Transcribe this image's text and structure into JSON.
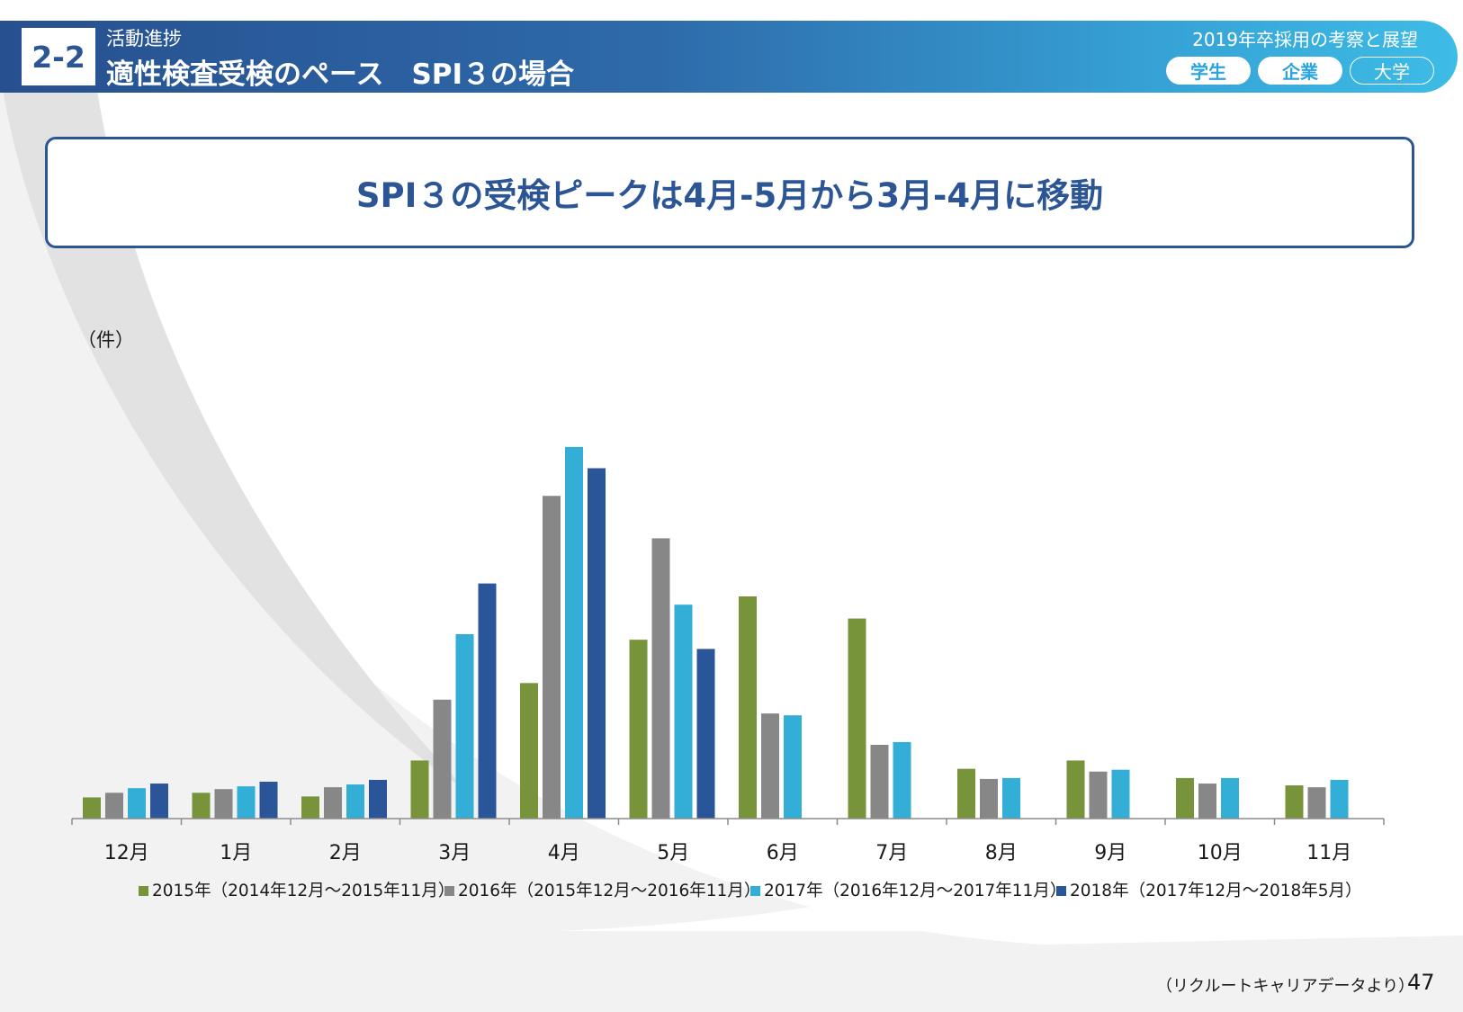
{
  "header": {
    "section_number": "2-2",
    "section_sub": "活動進捗",
    "section_title": "適性検査受検のペース　SPI３の場合",
    "report_title": "2019年卒採用の考察と展望",
    "tags": [
      "学生",
      "企業",
      "大学"
    ]
  },
  "headline": "SPI３の受検ピークは4月-5月から3月-4月に移動",
  "chart_data": {
    "type": "bar",
    "unit_label": "（件）",
    "categories": [
      "12月",
      "1月",
      "2月",
      "3月",
      "4月",
      "5月",
      "6月",
      "7月",
      "8月",
      "9月",
      "10月",
      "11月"
    ],
    "ylim": [
      0,
      400
    ],
    "series": [
      {
        "name": "2015年（2014年12月～2015年11月）",
        "color": "#77943b",
        "values": [
          23,
          28,
          24,
          63,
          147,
          194,
          241,
          217,
          54,
          63,
          44,
          36
        ]
      },
      {
        "name": "2016年（2015年12月～2016年11月）",
        "color": "#878787",
        "values": [
          28,
          32,
          34,
          129,
          350,
          304,
          114,
          80,
          43,
          51,
          38,
          34
        ]
      },
      {
        "name": "2017年（2016年12月～2017年11月）",
        "color": "#33aed6",
        "values": [
          33,
          35,
          37,
          200,
          403,
          232,
          112,
          83,
          44,
          53,
          44,
          42
        ]
      },
      {
        "name": "2018年（2017年12月～2018年5月）",
        "color": "#2b5599",
        "values": [
          38,
          40,
          42,
          255,
          380,
          184,
          null,
          null,
          null,
          null,
          null,
          null
        ]
      }
    ]
  },
  "footer": {
    "source": "（リクルートキャリアデータより）",
    "page_number": "47"
  }
}
